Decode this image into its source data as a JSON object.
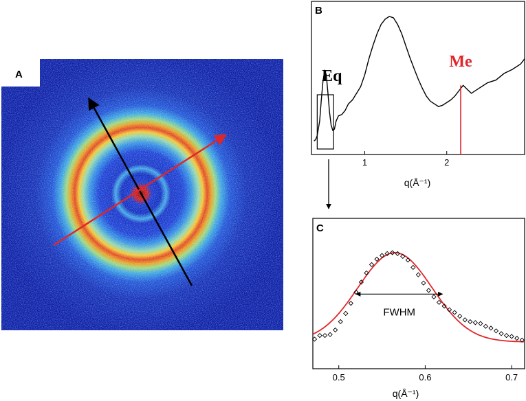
{
  "panels": {
    "a": {
      "letter": "A",
      "description_colors": {
        "background": "#0a1fa8",
        "ring_outer": "#e0451f",
        "ring_mid": "#f3c531",
        "center": "#e8141c"
      },
      "meridional_arrow_color": "#000000",
      "equatorial_arrow_color": "#e0262a"
    },
    "b": {
      "letter": "B"
    },
    "c": {
      "letter": "C"
    }
  },
  "chart_data": [
    {
      "id": "panel-b",
      "type": "line",
      "title": "",
      "xlabel": "q(Å⁻¹)",
      "ylabel": "",
      "xlim": [
        0.35,
        2.95
      ],
      "ylim": [
        0,
        1
      ],
      "xticks": [
        1,
        2
      ],
      "x": [
        0.38,
        0.4,
        0.42,
        0.45,
        0.47,
        0.49,
        0.51,
        0.53,
        0.55,
        0.57,
        0.59,
        0.61,
        0.63,
        0.65,
        0.68,
        0.72,
        0.76,
        0.8,
        0.85,
        0.9,
        0.95,
        1.0,
        1.05,
        1.1,
        1.15,
        1.2,
        1.25,
        1.3,
        1.35,
        1.4,
        1.45,
        1.5,
        1.55,
        1.6,
        1.65,
        1.7,
        1.75,
        1.8,
        1.85,
        1.9,
        1.95,
        2.0,
        2.05,
        2.1,
        2.15,
        2.2,
        2.25,
        2.3,
        2.4,
        2.5,
        2.6,
        2.7,
        2.8,
        2.9,
        2.95
      ],
      "y": [
        0.05,
        0.06,
        0.09,
        0.2,
        0.36,
        0.5,
        0.58,
        0.55,
        0.42,
        0.27,
        0.17,
        0.13,
        0.14,
        0.2,
        0.24,
        0.25,
        0.28,
        0.33,
        0.36,
        0.41,
        0.46,
        0.55,
        0.67,
        0.77,
        0.86,
        0.93,
        0.97,
        0.99,
        0.98,
        0.93,
        0.86,
        0.77,
        0.68,
        0.6,
        0.52,
        0.45,
        0.39,
        0.35,
        0.33,
        0.31,
        0.32,
        0.34,
        0.36,
        0.39,
        0.43,
        0.47,
        0.44,
        0.41,
        0.45,
        0.49,
        0.51,
        0.56,
        0.59,
        0.63,
        0.67
      ],
      "line_color": "#000000",
      "annotations": [
        {
          "text": "Eq",
          "x": 0.6,
          "color": "#000000",
          "box_x": [
            0.42,
            0.62
          ]
        },
        {
          "text": "Me",
          "x": 2.17,
          "color": "#e0262a"
        }
      ]
    },
    {
      "id": "panel-c",
      "type": "scatter",
      "title": "",
      "xlabel": "q(Å⁻¹)",
      "ylabel": "",
      "xlim": [
        0.47,
        0.715
      ],
      "ylim": [
        0,
        1
      ],
      "xticks": [
        0.5,
        0.6,
        0.7
      ],
      "xtick_labels": [
        "0.5",
        "0.6",
        "0.7"
      ],
      "annotation": {
        "text": "FWHM",
        "x_range": [
          0.52,
          0.62
        ],
        "y": 0.55
      },
      "series": [
        {
          "name": "data",
          "marker": "diamond-open",
          "color": "#000000",
          "x": [
            0.472,
            0.478,
            0.484,
            0.49,
            0.496,
            0.502,
            0.508,
            0.514,
            0.52,
            0.526,
            0.532,
            0.538,
            0.544,
            0.55,
            0.556,
            0.562,
            0.568,
            0.574,
            0.58,
            0.586,
            0.592,
            0.598,
            0.604,
            0.61,
            0.616,
            0.622,
            0.628,
            0.634,
            0.64,
            0.646,
            0.652,
            0.658,
            0.664,
            0.67,
            0.676,
            0.682,
            0.688,
            0.694,
            0.7,
            0.706,
            0.712
          ],
          "y": [
            0.06,
            0.1,
            0.1,
            0.11,
            0.16,
            0.25,
            0.34,
            0.45,
            0.57,
            0.68,
            0.78,
            0.87,
            0.93,
            0.97,
            0.99,
            1.0,
            0.99,
            0.96,
            0.92,
            0.84,
            0.76,
            0.67,
            0.59,
            0.52,
            0.46,
            0.42,
            0.38,
            0.35,
            0.31,
            0.27,
            0.25,
            0.24,
            0.23,
            0.2,
            0.18,
            0.15,
            0.12,
            0.1,
            0.09,
            0.07,
            0.05
          ]
        },
        {
          "name": "fit",
          "type": "line",
          "color": "#e0262a",
          "model": "gaussian",
          "center": 0.565,
          "sigma": 0.043,
          "amplitude": 0.97,
          "baseline": 0.03
        }
      ]
    }
  ]
}
